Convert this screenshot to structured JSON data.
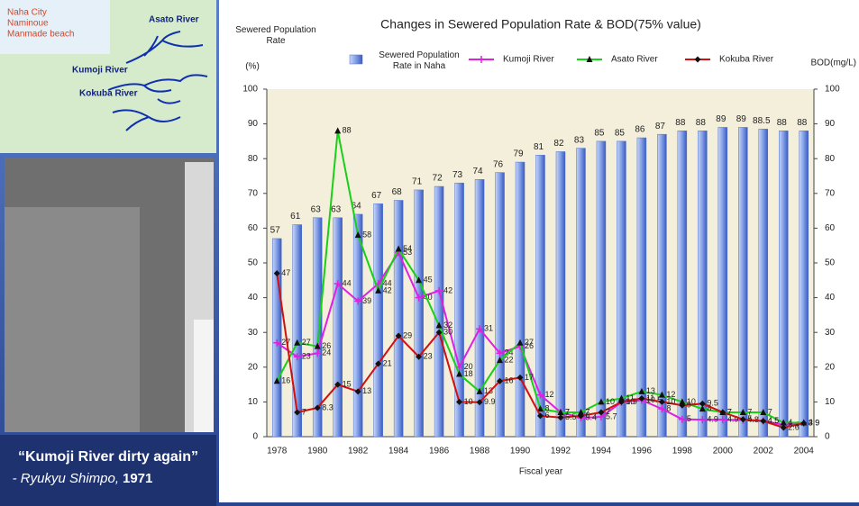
{
  "slide": {
    "map_labels": {
      "city": "Naha City",
      "area": "Naminoue",
      "beach": "Manmade beach",
      "asato": "Asato River",
      "kumoji": "Kumoji River",
      "kokuba": "Kokuba River"
    },
    "caption": {
      "quote": "“Kumoji River dirty again”",
      "source": "- Ryukyu Shimpo,",
      "year": "1971"
    }
  },
  "chart_data": {
    "type": "bar",
    "title": "Changes in Sewered Population Rate & BOD(75% value)",
    "y_label": "Sewered Population Rate",
    "y_unit": "(%)",
    "y2_label": "BOD(mg/L)",
    "x_label": "Fiscal year",
    "categories": [
      "1978",
      null,
      "1980",
      null,
      "1982",
      null,
      "1984",
      null,
      "1986",
      null,
      "1988",
      null,
      "1990",
      null,
      "1992",
      null,
      "1994",
      null,
      "1996",
      null,
      "1998",
      null,
      "2000",
      null,
      "2002",
      null,
      "2004"
    ],
    "ylim": [
      0,
      100
    ],
    "yticks": [
      0,
      10,
      20,
      30,
      40,
      50,
      60,
      70,
      80,
      90,
      100
    ],
    "y2lim": [
      0,
      100
    ],
    "y2ticks": [
      0,
      10,
      20,
      30,
      40,
      50,
      60,
      70,
      80,
      90,
      100
    ],
    "grid": false,
    "series": [
      {
        "name": "Sewered Population Rate in Naha",
        "type": "bar",
        "color": "#4a6fd0",
        "values": [
          57,
          61,
          63,
          63,
          64,
          67,
          68,
          71,
          72,
          73,
          74,
          76,
          79,
          81,
          82,
          83,
          85,
          85,
          86,
          87,
          88,
          88,
          89,
          89,
          88.5,
          88,
          88
        ]
      },
      {
        "name": "Kumoji River",
        "type": "line",
        "axis": "y2",
        "color": "#e020e0",
        "marker": "plus",
        "values": [
          27,
          23,
          24,
          44,
          39,
          44,
          53,
          40,
          42,
          20,
          31,
          24,
          26,
          12,
          7,
          5.4,
          5.7,
          9.9,
          10.5,
          8,
          5,
          4.9,
          4.9,
          4.8,
          4.5,
          3.4,
          3.9
        ]
      },
      {
        "name": "Asato River",
        "type": "line",
        "axis": "y2",
        "color": "#18d018",
        "marker": "triangle",
        "values": [
          16,
          27,
          26,
          88,
          58,
          42,
          54,
          45,
          32,
          18,
          13,
          22,
          27,
          8,
          7,
          7,
          10,
          11,
          13,
          12,
          10,
          8,
          7,
          7,
          7,
          4,
          4
        ]
      },
      {
        "name": "Kokuba River",
        "type": "line",
        "axis": "y2",
        "color": "#d01010",
        "marker": "diamond",
        "values": [
          47,
          7,
          8.3,
          15,
          13,
          21,
          29,
          23,
          30,
          10,
          9.9,
          16,
          17,
          6,
          5.5,
          6,
          7,
          10,
          11,
          10,
          9,
          9.5,
          7,
          5,
          4.5,
          2.6,
          3.9
        ]
      }
    ]
  }
}
